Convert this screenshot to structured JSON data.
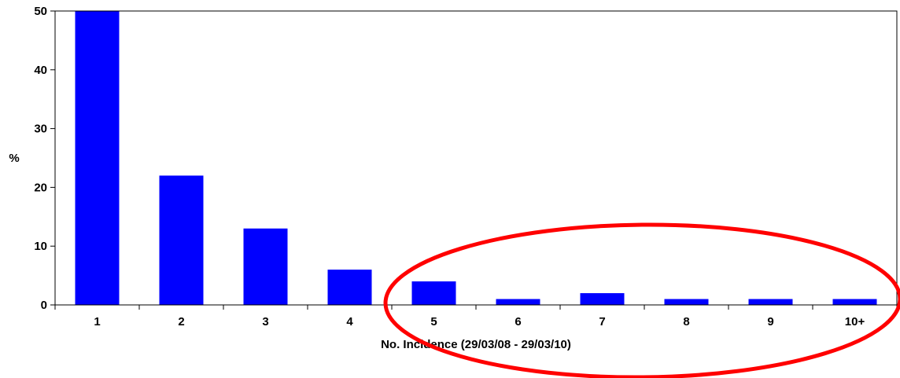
{
  "chart_data": {
    "type": "bar",
    "categories": [
      "1",
      "2",
      "3",
      "4",
      "5",
      "6",
      "7",
      "8",
      "9",
      "10+"
    ],
    "values": [
      50,
      22,
      13,
      6,
      4,
      1,
      2,
      1,
      1,
      1
    ],
    "xlabel": "No. Incidence (29/03/08 - 29/03/10)",
    "ylabel": "%",
    "ylim": [
      0,
      50
    ],
    "yticks": [
      0,
      10,
      20,
      30,
      40,
      50
    ],
    "grid": false,
    "bar_color": "#0000FF",
    "annotation": {
      "shape": "ellipse",
      "color": "#FF0000",
      "highlights": [
        "5",
        "6",
        "7",
        "8",
        "9",
        "10+"
      ]
    }
  }
}
